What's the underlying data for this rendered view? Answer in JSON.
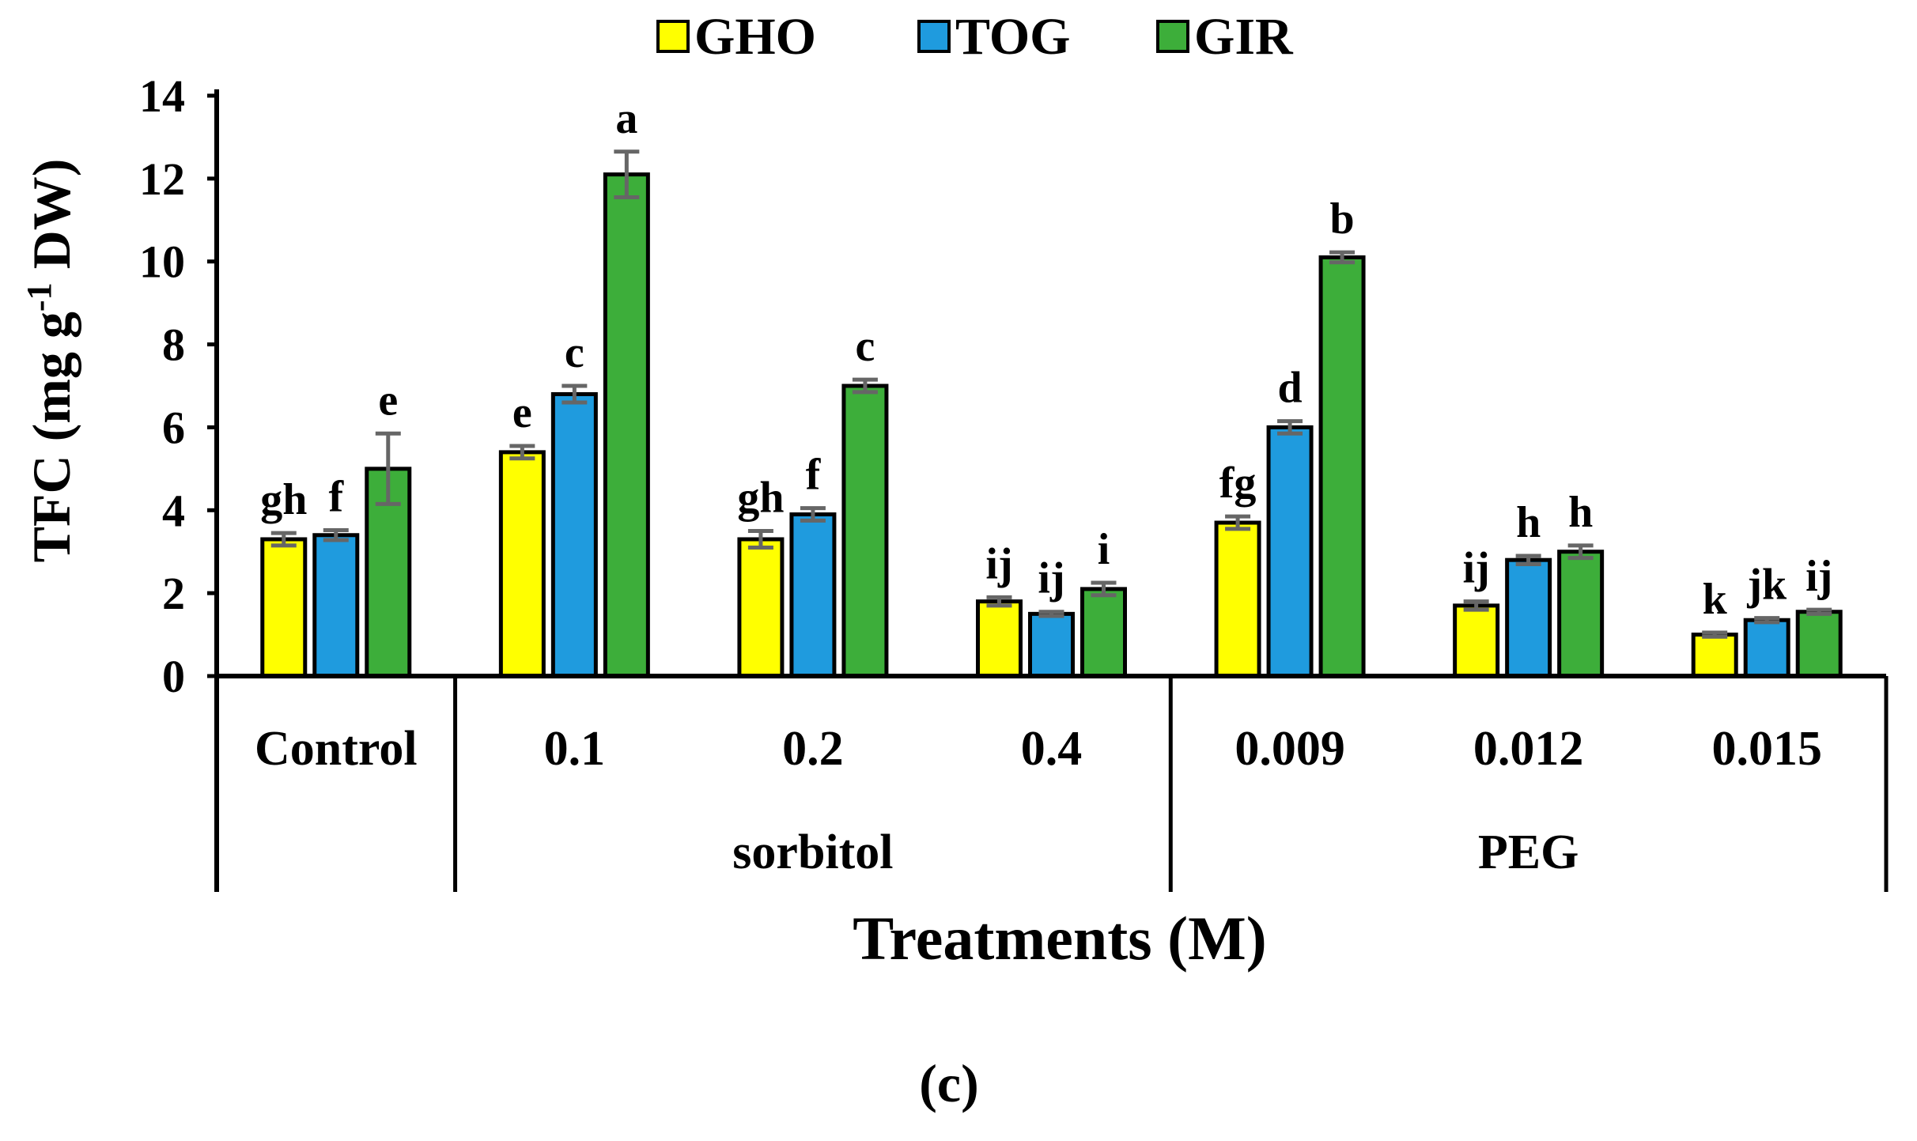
{
  "chart_data": {
    "type": "bar",
    "title": "",
    "xlabel": "Treatments (M)",
    "ylabel": "TFC (mg g-1 DW)",
    "ylabel_parts": {
      "pre": "TFC (mg g",
      "sup": "-1",
      "post": " DW)"
    },
    "ylim": [
      0,
      14
    ],
    "yticks": [
      0,
      2,
      4,
      6,
      8,
      10,
      12,
      14
    ],
    "categories": [
      "Control",
      "0.1",
      "0.2",
      "0.4",
      "0.009",
      "0.012",
      "0.015"
    ],
    "groups": [
      {
        "label": "sorbitol",
        "categories": [
          "0.1",
          "0.2",
          "0.4"
        ]
      },
      {
        "label": "PEG",
        "categories": [
          "0.009",
          "0.012",
          "0.015"
        ]
      }
    ],
    "series": [
      {
        "name": "GHO",
        "color": "#FFFF00",
        "values": [
          3.3,
          5.4,
          3.3,
          1.8,
          3.7,
          1.7,
          1.0
        ],
        "errors": [
          0.15,
          0.15,
          0.2,
          0.1,
          0.15,
          0.1,
          0.05
        ],
        "letters": [
          "gh",
          "e",
          "gh",
          "ij",
          "fg",
          "ij",
          "k"
        ]
      },
      {
        "name": "TOG",
        "color": "#1F9BDE",
        "values": [
          3.4,
          6.8,
          3.9,
          1.5,
          6.0,
          2.8,
          1.35
        ],
        "errors": [
          0.12,
          0.2,
          0.15,
          0.05,
          0.15,
          0.1,
          0.05
        ],
        "letters": [
          "f",
          "c",
          "f",
          "ij",
          "d",
          "h",
          "jk"
        ]
      },
      {
        "name": "GIR",
        "color": "#3DAE3A",
        "values": [
          5.0,
          12.1,
          7.0,
          2.1,
          10.1,
          3.0,
          1.55
        ],
        "errors": [
          0.85,
          0.55,
          0.15,
          0.15,
          0.12,
          0.15,
          0.05
        ],
        "letters": [
          "e",
          "a",
          "c",
          "i",
          "b",
          "h",
          "ij"
        ]
      }
    ],
    "legend_position": "top-center",
    "grid": false
  },
  "caption": "(c)"
}
